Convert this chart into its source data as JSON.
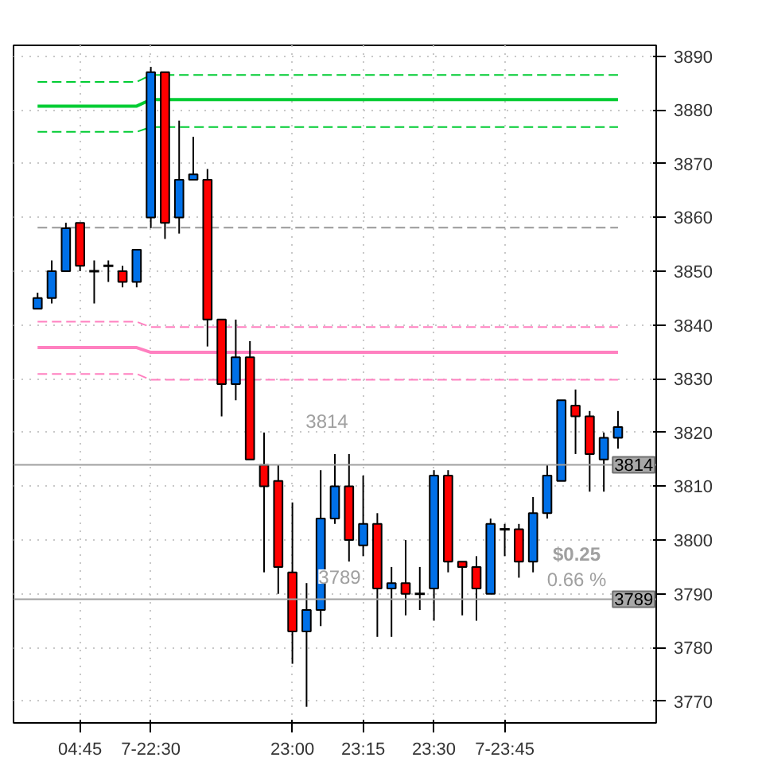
{
  "chart_data": {
    "type": "candlestick",
    "categories": [
      null,
      null,
      null,
      "04:45",
      null,
      null,
      null,
      null,
      "7-22:30",
      null,
      null,
      null,
      null,
      null,
      null,
      null,
      null,
      null,
      "23:00",
      null,
      null,
      null,
      null,
      "23:15",
      null,
      null,
      null,
      null,
      "23:30",
      null,
      null,
      null,
      null,
      "7-23:45",
      null,
      null,
      null,
      null,
      null,
      null,
      null,
      null
    ],
    "ohlc": [
      [
        3843,
        3846,
        3843,
        3845
      ],
      [
        3845,
        3852,
        3844,
        3850
      ],
      [
        3850,
        3859,
        3850,
        3858
      ],
      [
        3859,
        3859,
        3850,
        3851
      ],
      [
        3850,
        3852,
        3844,
        3850
      ],
      [
        3851,
        3852,
        3848,
        3851
      ],
      [
        3850,
        3851,
        3847,
        3848
      ],
      [
        3848,
        3854,
        3847,
        3854
      ],
      [
        3860,
        3888,
        3858,
        3887
      ],
      [
        3887,
        3887,
        3856,
        3859
      ],
      [
        3860,
        3878,
        3857,
        3867
      ],
      [
        3867,
        3875,
        3867,
        3868
      ],
      [
        3867,
        3869,
        3836,
        3841
      ],
      [
        3841,
        3841,
        3823,
        3829
      ],
      [
        3829,
        3841,
        3826,
        3834
      ],
      [
        3834,
        3837,
        3815,
        3815
      ],
      [
        3814,
        3820,
        3794,
        3810
      ],
      [
        3811,
        3814,
        3790,
        3795
      ],
      [
        3794,
        3807,
        3777,
        3783
      ],
      [
        3783,
        3792,
        3769,
        3787
      ],
      [
        3787,
        3813,
        3784,
        3804
      ],
      [
        3804,
        3816,
        3803,
        3810
      ],
      [
        3810,
        3816,
        3796,
        3800
      ],
      [
        3799,
        3812,
        3797,
        3803
      ],
      [
        3803,
        3805,
        3782,
        3791
      ],
      [
        3791,
        3795,
        3782,
        3792
      ],
      [
        3792,
        3800,
        3786,
        3790
      ],
      [
        3790,
        3795,
        3787,
        3790
      ],
      [
        3791,
        3813,
        3785,
        3812
      ],
      [
        3812,
        3813,
        3794,
        3796
      ],
      [
        3796,
        3796,
        3786,
        3795
      ],
      [
        3795,
        3797,
        3785,
        3791
      ],
      [
        3790,
        3804,
        3790,
        3803
      ],
      [
        3802,
        3803,
        3797,
        3802
      ],
      [
        3802,
        3803,
        3793,
        3796
      ],
      [
        3796,
        3808,
        3794,
        3805
      ],
      [
        3805,
        3814,
        3804,
        3812
      ],
      [
        3811,
        3826,
        3811,
        3826
      ],
      [
        3825,
        3828,
        3816,
        3823
      ],
      [
        3823,
        3824,
        3809,
        3816
      ],
      [
        3815,
        3820,
        3809,
        3819
      ],
      [
        3819,
        3824,
        3817,
        3821
      ]
    ],
    "colors": [
      "#0070e8",
      "#0070e8",
      "#0070e8",
      "#ff0000",
      "#000000",
      "#000000",
      "#ff0000",
      "#0070e8",
      "#0070e8",
      "#ff0000",
      "#0070e8",
      "#0070e8",
      "#ff0000",
      "#ff0000",
      "#0070e8",
      "#ff0000",
      "#ff0000",
      "#ff0000",
      "#ff0000",
      "#0070e8",
      "#0070e8",
      "#0070e8",
      "#ff0000",
      "#0070e8",
      "#ff0000",
      "#0070e8",
      "#ff0000",
      "#000000",
      "#0070e8",
      "#ff0000",
      "#ff0000",
      "#ff0000",
      "#0070e8",
      "#000000",
      "#ff0000",
      "#0070e8",
      "#0070e8",
      "#0070e8",
      "#ff0000",
      "#ff0000",
      "#0070e8",
      "#0070e8"
    ],
    "series": [
      {
        "type": "line",
        "line_style": "dashed",
        "color": "#00cc33",
        "values": [
          3885.2,
          3885.2,
          3885.2,
          3885.2,
          3885.2,
          3885.2,
          3885.2,
          3885.2,
          3886.5,
          3886.5,
          3886.5,
          3886.5,
          3886.5,
          3886.5,
          3886.5,
          3886.5,
          3886.5,
          3886.5,
          3886.5,
          3886.5,
          3886.5,
          3886.5,
          3886.5,
          3886.5,
          3886.5,
          3886.5,
          3886.5,
          3886.5,
          3886.5,
          3886.5,
          3886.5,
          3886.5,
          3886.5,
          3886.5,
          3886.5,
          3886.5,
          3886.5,
          3886.5,
          3886.5,
          3886.5,
          3886.5,
          3886.5
        ]
      },
      {
        "type": "line",
        "line_style": "solid",
        "color": "#00cc33",
        "values": [
          3880.7,
          3880.7,
          3880.7,
          3880.7,
          3880.7,
          3880.7,
          3880.7,
          3880.7,
          3881.9,
          3881.9,
          3881.9,
          3881.9,
          3881.9,
          3881.9,
          3881.9,
          3881.9,
          3881.9,
          3881.9,
          3881.9,
          3881.9,
          3881.9,
          3881.9,
          3881.9,
          3881.9,
          3881.9,
          3881.9,
          3881.9,
          3881.9,
          3881.9,
          3881.9,
          3881.9,
          3881.9,
          3881.9,
          3881.9,
          3881.9,
          3881.9,
          3881.9,
          3881.9,
          3881.9,
          3881.9,
          3881.9,
          3881.9
        ]
      },
      {
        "type": "line",
        "line_style": "dashed",
        "color": "#00cc33",
        "values": [
          3875.9,
          3875.9,
          3875.9,
          3875.9,
          3875.9,
          3875.9,
          3875.9,
          3875.9,
          3876.8,
          3876.8,
          3876.8,
          3876.8,
          3876.8,
          3876.8,
          3876.8,
          3876.8,
          3876.8,
          3876.8,
          3876.8,
          3876.8,
          3876.8,
          3876.8,
          3876.8,
          3876.8,
          3876.8,
          3876.8,
          3876.8,
          3876.8,
          3876.8,
          3876.8,
          3876.8,
          3876.8,
          3876.8,
          3876.8,
          3876.8,
          3876.8,
          3876.8,
          3876.8,
          3876.8,
          3876.8,
          3876.8,
          3876.8
        ]
      },
      {
        "type": "line",
        "line_style": "dashed",
        "color": "#999999",
        "values": [
          3858.1,
          3858.1,
          3858.1,
          3858.1,
          3858.1,
          3858.1,
          3858.1,
          3858.1,
          3858.1,
          3858.1,
          3858.1,
          3858.1,
          3858.1,
          3858.1,
          3858.1,
          3858.1,
          3858.1,
          3858.1,
          3858.1,
          3858.1,
          3858.1,
          3858.1,
          3858.1,
          3858.1,
          3858.1,
          3858.1,
          3858.1,
          3858.1,
          3858.1,
          3858.1,
          3858.1,
          3858.1,
          3858.1,
          3858.1,
          3858.1,
          3858.1,
          3858.1,
          3858.1,
          3858.1,
          3858.1,
          3858.1,
          3858.1
        ]
      },
      {
        "type": "line",
        "line_style": "dashed",
        "color": "#ff80c0",
        "values": [
          3840.6,
          3840.6,
          3840.6,
          3840.6,
          3840.6,
          3840.6,
          3840.6,
          3840.6,
          3839.6,
          3839.6,
          3839.6,
          3839.6,
          3839.6,
          3839.6,
          3839.6,
          3839.6,
          3839.6,
          3839.6,
          3839.6,
          3839.6,
          3839.6,
          3839.6,
          3839.6,
          3839.6,
          3839.6,
          3839.6,
          3839.6,
          3839.6,
          3839.6,
          3839.6,
          3839.6,
          3839.6,
          3839.6,
          3839.6,
          3839.6,
          3839.6,
          3839.6,
          3839.6,
          3839.6,
          3839.6,
          3839.6,
          3839.6
        ]
      },
      {
        "type": "line",
        "line_style": "solid",
        "color": "#ff80c0",
        "values": [
          3835.8,
          3835.8,
          3835.8,
          3835.8,
          3835.8,
          3835.8,
          3835.8,
          3835.8,
          3834.9,
          3834.9,
          3834.9,
          3834.9,
          3834.9,
          3834.9,
          3834.9,
          3834.9,
          3834.9,
          3834.9,
          3834.9,
          3834.9,
          3834.9,
          3834.9,
          3834.9,
          3834.9,
          3834.9,
          3834.9,
          3834.9,
          3834.9,
          3834.9,
          3834.9,
          3834.9,
          3834.9,
          3834.9,
          3834.9,
          3834.9,
          3834.9,
          3834.9,
          3834.9,
          3834.9,
          3834.9,
          3834.9,
          3834.9
        ]
      },
      {
        "type": "line",
        "line_style": "dashed",
        "color": "#ff80c0",
        "values": [
          3830.9,
          3830.9,
          3830.9,
          3830.9,
          3830.9,
          3830.9,
          3830.9,
          3830.9,
          3829.8,
          3829.8,
          3829.8,
          3829.8,
          3829.8,
          3829.8,
          3829.8,
          3829.8,
          3829.8,
          3829.8,
          3829.8,
          3829.8,
          3829.8,
          3829.8,
          3829.8,
          3829.8,
          3829.8,
          3829.8,
          3829.8,
          3829.8,
          3829.8,
          3829.8,
          3829.8,
          3829.8,
          3829.8,
          3829.8,
          3829.8,
          3829.8,
          3829.8,
          3829.8,
          3829.8,
          3829.8,
          3829.8,
          3829.8
        ]
      }
    ],
    "ref_lines": [
      {
        "axis": "y",
        "value": 3814,
        "label": "3814",
        "color": "#a0a0a0"
      },
      {
        "axis": "y",
        "value": 3789,
        "label": "3789",
        "color": "#a0a0a0"
      }
    ],
    "annotations": [
      "3814",
      "3789",
      "$0.25",
      "0.66 %"
    ],
    "ylim": [
      3766,
      3892
    ],
    "yticks": [
      3770,
      3780,
      3790,
      3800,
      3810,
      3820,
      3830,
      3840,
      3850,
      3860,
      3870,
      3880,
      3890
    ],
    "grid": true,
    "marker": "none"
  }
}
